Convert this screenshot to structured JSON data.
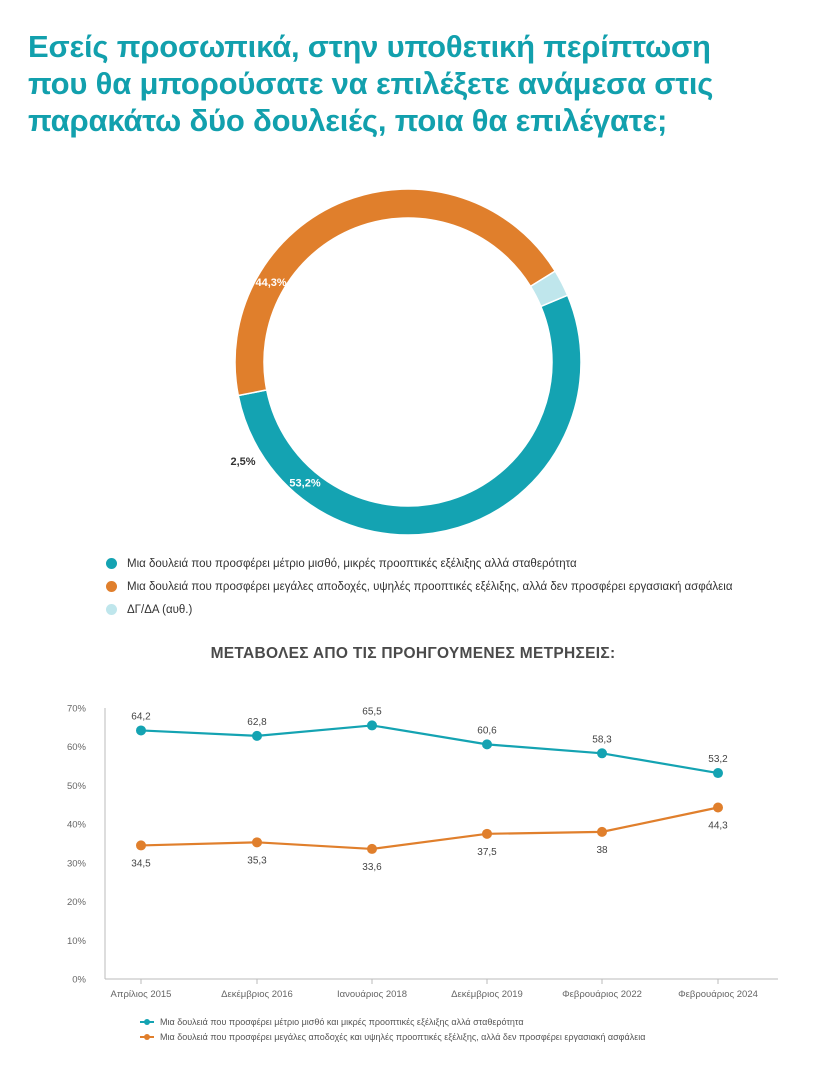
{
  "header": {
    "title_lines": [
      "Εσείς προσωπικά, στην υποθετική περίπτωση",
      "που θα μπορούσατε να επιλέξετε ανάμεσα στις",
      "παρακάτω δύο δουλειές, ποια θα επιλέγατε;"
    ]
  },
  "colors": {
    "accent": "#12a0ad",
    "teal": "#14a3b2",
    "orange": "#e07f2c",
    "light": "#bfe6ec"
  },
  "chart_data": [
    {
      "type": "pie",
      "variant": "donut",
      "slices": [
        {
          "label": "Μια δουλειά που προσφέρει μέτριο μισθό, μικρές προοπτικές εξέλιξης αλλά σταθερότητα",
          "value": 53.2,
          "display": "53,2%",
          "color": "#14a3b2"
        },
        {
          "label": "Μια δουλειά που προσφέρει μεγάλες αποδοχές, υψηλές προοπτικές εξέλιξης, αλλά δεν προσφέρει εργασιακή ασφάλεια",
          "value": 44.3,
          "display": "44,3%",
          "color": "#e07f2c"
        },
        {
          "label": "ΔΓ/ΔΑ (αυθ.)",
          "value": 2.5,
          "display": "2,5%",
          "color": "#bfe6ec"
        }
      ],
      "legend_position": "bottom"
    },
    {
      "type": "line",
      "title": "ΜΕΤΑΒΟΛΕΣ ΑΠΟ ΤΙΣ ΠΡΟΗΓΟΥΜΕΝΕΣ ΜΕΤΡΗΣΕΙΣ:",
      "categories": [
        "Απρίλιος 2015",
        "Δεκέμβριος 2016",
        "Ιανουάριος 2018",
        "Δεκέμβριος 2019",
        "Φεβρουάριος 2022",
        "Φεβρουάριος 2024"
      ],
      "series": [
        {
          "name": "Μια δουλειά που προσφέρει μέτριο μισθό και μικρές προοπτικές εξέλιξης αλλά σταθερότητα",
          "values": [
            64.2,
            62.8,
            65.5,
            60.6,
            58.3,
            53.2
          ],
          "labels": [
            "64,2",
            "62,8",
            "65,5",
            "60,6",
            "58,3",
            "53,2"
          ],
          "label_position": "above",
          "color": "#14a3b2"
        },
        {
          "name": "Μια δουλειά που προσφέρει μεγάλες αποδοχές και υψηλές προοπτικές εξέλιξης, αλλά δεν προσφέρει εργασιακή ασφάλεια",
          "values": [
            34.5,
            35.3,
            33.6,
            37.5,
            38,
            44.3
          ],
          "labels": [
            "34,5",
            "35,3",
            "33,6",
            "37,5",
            "38",
            "44,3"
          ],
          "label_position": "below",
          "color": "#e07f2c"
        }
      ],
      "ylim": [
        0,
        70
      ],
      "yticks": [
        "0%",
        "10%",
        "20%",
        "30%",
        "40%",
        "50%",
        "60%",
        "70%"
      ],
      "grid": false,
      "legend_position": "bottom"
    }
  ]
}
